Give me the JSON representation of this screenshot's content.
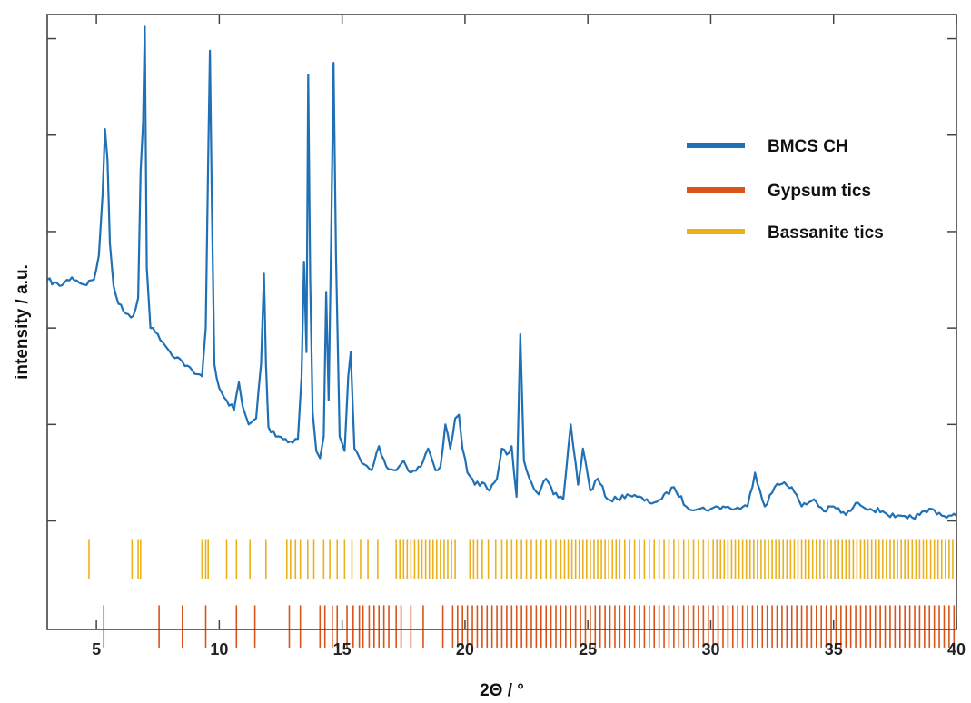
{
  "chart_data": {
    "type": "line",
    "xlabel": "2Θ / °",
    "ylabel": "intensity / a.u.",
    "xlim": [
      3,
      40
    ],
    "ylim": [
      -0.9,
      4.2
    ],
    "x_ticks": [
      5,
      10,
      15,
      20,
      25,
      30,
      35,
      40
    ],
    "x_tick_labels": [
      "5",
      "10",
      "15",
      "20",
      "25",
      "30",
      "35",
      "40"
    ],
    "y_ticks": [
      0,
      0.8,
      1.6,
      2.4,
      3.2,
      4.0
    ],
    "y_tick_labels": [
      "",
      "",
      "",
      "",
      "",
      ""
    ],
    "grid": false,
    "legend_position": "top-right",
    "series": [
      {
        "name": "BMCS CH",
        "color": "#1f70b5",
        "x": [
          3.0,
          3.5,
          4.0,
          4.5,
          4.9,
          5.1,
          5.25,
          5.35,
          5.45,
          5.55,
          5.7,
          5.9,
          6.2,
          6.5,
          6.7,
          6.8,
          6.9,
          6.97,
          7.05,
          7.2,
          7.5,
          8.0,
          8.5,
          9.0,
          9.3,
          9.45,
          9.55,
          9.62,
          9.7,
          9.8,
          10.0,
          10.3,
          10.6,
          10.8,
          10.95,
          11.2,
          11.5,
          11.7,
          11.82,
          11.9,
          12.0,
          12.3,
          12.7,
          13.0,
          13.2,
          13.35,
          13.45,
          13.55,
          13.62,
          13.7,
          13.8,
          13.95,
          14.1,
          14.25,
          14.35,
          14.45,
          14.55,
          14.65,
          14.75,
          14.9,
          15.1,
          15.25,
          15.35,
          15.5,
          15.8,
          16.2,
          16.5,
          16.8,
          17.2,
          17.5,
          17.8,
          18.2,
          18.5,
          18.8,
          19.0,
          19.2,
          19.4,
          19.6,
          19.75,
          19.9,
          20.1,
          20.4,
          20.7,
          21.0,
          21.3,
          21.5,
          21.7,
          21.9,
          22.1,
          22.25,
          22.4,
          22.7,
          23.0,
          23.3,
          23.6,
          24.0,
          24.3,
          24.6,
          24.8,
          25.1,
          25.4,
          25.8,
          26.2,
          26.6,
          27.0,
          27.5,
          28.0,
          28.5,
          29.0,
          29.5,
          30.0,
          30.5,
          31.0,
          31.5,
          31.8,
          32.2,
          32.6,
          33.0,
          33.3,
          33.7,
          34.2,
          34.6,
          35.0,
          35.5,
          36.0,
          36.5,
          37.0,
          37.5,
          38.0,
          38.5,
          39.0,
          39.5,
          40.0
        ],
        "y": [
          2.0,
          1.95,
          2.02,
          1.96,
          2.0,
          2.2,
          2.7,
          3.25,
          3.0,
          2.3,
          1.95,
          1.8,
          1.72,
          1.7,
          1.85,
          2.9,
          3.3,
          4.1,
          2.1,
          1.6,
          1.55,
          1.4,
          1.32,
          1.22,
          1.2,
          1.6,
          3.0,
          3.9,
          2.6,
          1.3,
          1.1,
          1.0,
          0.92,
          1.15,
          0.95,
          0.8,
          0.85,
          1.3,
          2.05,
          1.3,
          0.78,
          0.7,
          0.68,
          0.65,
          0.68,
          1.2,
          2.15,
          1.4,
          3.7,
          2.0,
          0.9,
          0.58,
          0.52,
          0.7,
          1.9,
          1.0,
          2.3,
          3.8,
          2.2,
          0.7,
          0.58,
          1.2,
          1.4,
          0.6,
          0.48,
          0.42,
          0.62,
          0.45,
          0.42,
          0.5,
          0.4,
          0.45,
          0.6,
          0.42,
          0.45,
          0.8,
          0.6,
          0.85,
          0.88,
          0.6,
          0.4,
          0.3,
          0.32,
          0.25,
          0.35,
          0.6,
          0.55,
          0.62,
          0.2,
          1.55,
          0.5,
          0.32,
          0.22,
          0.35,
          0.22,
          0.18,
          0.8,
          0.3,
          0.6,
          0.25,
          0.35,
          0.18,
          0.18,
          0.22,
          0.2,
          0.15,
          0.18,
          0.28,
          0.12,
          0.1,
          0.1,
          0.12,
          0.1,
          0.12,
          0.4,
          0.12,
          0.28,
          0.32,
          0.28,
          0.12,
          0.18,
          0.08,
          0.12,
          0.05,
          0.15,
          0.1,
          0.08,
          0.03,
          0.02,
          0.05,
          0.1,
          0.04,
          0.04
        ]
      },
      {
        "name": "Gypsum tics",
        "color": "#d8541a",
        "tic_band": [
          -0.7,
          -1.05
        ],
        "positions": [
          5.3,
          7.55,
          8.5,
          9.45,
          10.7,
          11.45,
          12.85,
          13.3,
          14.1,
          14.3,
          14.6,
          14.8,
          15.2,
          15.45,
          15.7,
          15.85,
          16.1,
          16.3,
          16.5,
          16.7,
          16.9,
          17.2,
          17.4,
          17.8,
          18.3,
          19.1,
          19.5,
          19.7,
          19.9,
          20.1,
          20.3,
          20.5,
          20.7,
          20.9,
          21.1,
          21.3,
          21.5,
          21.7,
          21.9,
          22.1,
          22.3,
          22.5,
          22.7,
          22.9,
          23.1,
          23.3,
          23.5,
          23.7,
          23.9,
          24.1,
          24.3,
          24.5,
          24.7,
          24.9,
          25.1,
          25.3,
          25.5,
          25.7,
          25.9,
          26.1,
          26.3,
          26.5,
          26.7,
          26.9,
          27.1,
          27.3,
          27.5,
          27.7,
          27.9,
          28.1,
          28.3,
          28.5,
          28.7,
          28.9,
          29.1,
          29.3,
          29.5,
          29.7,
          29.9,
          30.1,
          30.3,
          30.5,
          30.7,
          30.9,
          31.1,
          31.3,
          31.5,
          31.7,
          31.9,
          32.1,
          32.3,
          32.5,
          32.7,
          32.9,
          33.1,
          33.3,
          33.5,
          33.7,
          33.9,
          34.1,
          34.3,
          34.5,
          34.7,
          34.9,
          35.1,
          35.3,
          35.5,
          35.7,
          35.9,
          36.1,
          36.3,
          36.5,
          36.7,
          36.9,
          37.1,
          37.3,
          37.5,
          37.7,
          37.9,
          38.1,
          38.3,
          38.5,
          38.7,
          38.9,
          39.1,
          39.3,
          39.5,
          39.7,
          39.9
        ]
      },
      {
        "name": "Bassanite tics",
        "color": "#ebb11c",
        "tic_band": [
          -0.15,
          -0.48
        ],
        "positions": [
          4.7,
          6.45,
          6.7,
          6.8,
          9.3,
          9.45,
          9.55,
          10.3,
          10.7,
          11.25,
          11.9,
          12.75,
          12.9,
          13.1,
          13.3,
          13.6,
          13.85,
          14.25,
          14.5,
          14.8,
          15.1,
          15.4,
          15.75,
          16.05,
          16.45,
          17.2,
          17.35,
          17.5,
          17.65,
          17.8,
          17.95,
          18.1,
          18.25,
          18.4,
          18.55,
          18.7,
          18.85,
          19.0,
          19.15,
          19.3,
          19.45,
          19.6,
          20.2,
          20.35,
          20.5,
          20.7,
          20.95,
          21.25,
          21.5,
          21.7,
          21.9,
          22.1,
          22.3,
          22.5,
          22.7,
          22.9,
          23.1,
          23.3,
          23.5,
          23.7,
          23.9,
          24.05,
          24.2,
          24.35,
          24.5,
          24.65,
          24.8,
          24.95,
          25.1,
          25.25,
          25.4,
          25.55,
          25.7,
          25.85,
          26.0,
          26.15,
          26.3,
          26.5,
          26.7,
          26.9,
          27.1,
          27.3,
          27.5,
          27.7,
          27.9,
          28.1,
          28.3,
          28.5,
          28.7,
          28.9,
          29.1,
          29.3,
          29.5,
          29.7,
          29.9,
          30.1,
          30.25,
          30.4,
          30.55,
          30.7,
          30.85,
          31.0,
          31.15,
          31.3,
          31.45,
          31.6,
          31.75,
          31.9,
          32.05,
          32.2,
          32.35,
          32.5,
          32.65,
          32.8,
          32.95,
          33.1,
          33.25,
          33.4,
          33.55,
          33.7,
          33.85,
          34.0,
          34.15,
          34.3,
          34.45,
          34.6,
          34.75,
          34.9,
          35.05,
          35.2,
          35.35,
          35.5,
          35.65,
          35.8,
          35.95,
          36.1,
          36.25,
          36.4,
          36.55,
          36.7,
          36.85,
          37.0,
          37.15,
          37.3,
          37.45,
          37.6,
          37.75,
          37.9,
          38.05,
          38.2,
          38.35,
          38.5,
          38.65,
          38.8,
          38.95,
          39.1,
          39.25,
          39.4,
          39.55,
          39.7,
          39.85,
          40.0
        ]
      }
    ]
  }
}
